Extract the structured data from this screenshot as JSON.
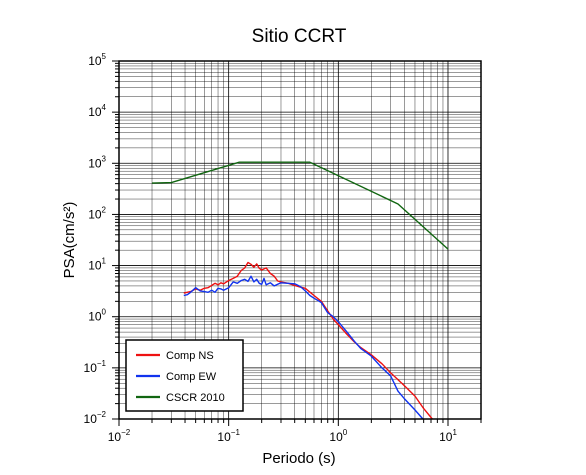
{
  "chart_data": {
    "type": "line",
    "title": "Sitio CCRT",
    "xlabel": "Periodo (s)",
    "ylabel": "PSA(cm/s²)",
    "xscale": "log",
    "yscale": "log",
    "xlim": [
      0.01,
      20
    ],
    "ylim": [
      0.01,
      100000
    ],
    "grid": true,
    "legend_position": "bottom-left",
    "x_ticks": [
      {
        "value": 0.01,
        "base": "10",
        "exp": "−2"
      },
      {
        "value": 0.1,
        "base": "10",
        "exp": "−1"
      },
      {
        "value": 1,
        "base": "10",
        "exp": "0"
      },
      {
        "value": 10,
        "base": "10",
        "exp": "1"
      }
    ],
    "y_ticks": [
      {
        "value": 0.01,
        "base": "10",
        "exp": "−2"
      },
      {
        "value": 0.1,
        "base": "10",
        "exp": "−1"
      },
      {
        "value": 1,
        "base": "10",
        "exp": "0"
      },
      {
        "value": 10,
        "base": "10",
        "exp": "1"
      },
      {
        "value": 100,
        "base": "10",
        "exp": "2"
      },
      {
        "value": 1000,
        "base": "10",
        "exp": "3"
      },
      {
        "value": 10000,
        "base": "10",
        "exp": "4"
      },
      {
        "value": 100000,
        "base": "10",
        "exp": "5"
      }
    ],
    "series": [
      {
        "name": "Comp NS",
        "color": "#ee1111",
        "points": [
          [
            0.039,
            2.9
          ],
          [
            0.045,
            3.1
          ],
          [
            0.05,
            3.5
          ],
          [
            0.055,
            3.3
          ],
          [
            0.06,
            3.6
          ],
          [
            0.065,
            3.7
          ],
          [
            0.07,
            4.1
          ],
          [
            0.075,
            4.5
          ],
          [
            0.08,
            4.2
          ],
          [
            0.085,
            4.6
          ],
          [
            0.09,
            4.4
          ],
          [
            0.1,
            5.1
          ],
          [
            0.11,
            5.6
          ],
          [
            0.12,
            6.2
          ],
          [
            0.13,
            8.0
          ],
          [
            0.14,
            9.0
          ],
          [
            0.15,
            11.5
          ],
          [
            0.16,
            10.6
          ],
          [
            0.17,
            9.3
          ],
          [
            0.18,
            10.8
          ],
          [
            0.19,
            8.9
          ],
          [
            0.2,
            8.2
          ],
          [
            0.22,
            9.0
          ],
          [
            0.24,
            7.0
          ],
          [
            0.26,
            6.2
          ],
          [
            0.28,
            5.0
          ],
          [
            0.3,
            4.8
          ],
          [
            0.35,
            4.5
          ],
          [
            0.4,
            4.1
          ],
          [
            0.45,
            3.8
          ],
          [
            0.5,
            3.6
          ],
          [
            0.6,
            2.6
          ],
          [
            0.7,
            2.0
          ],
          [
            0.8,
            1.3
          ],
          [
            0.9,
            0.9
          ],
          [
            1.0,
            0.7
          ],
          [
            1.2,
            0.45
          ],
          [
            1.4,
            0.32
          ],
          [
            1.6,
            0.25
          ],
          [
            2.0,
            0.18
          ],
          [
            2.5,
            0.12
          ],
          [
            3.0,
            0.08
          ],
          [
            4.0,
            0.045
          ],
          [
            5.0,
            0.028
          ],
          [
            6.0,
            0.016
          ],
          [
            7.2,
            0.01
          ]
        ]
      },
      {
        "name": "Comp EW",
        "color": "#1133ee",
        "points": [
          [
            0.039,
            2.6
          ],
          [
            0.042,
            2.7
          ],
          [
            0.045,
            3.0
          ],
          [
            0.05,
            3.7
          ],
          [
            0.055,
            3.2
          ],
          [
            0.06,
            3.1
          ],
          [
            0.065,
            3.0
          ],
          [
            0.07,
            3.3
          ],
          [
            0.075,
            3.0
          ],
          [
            0.08,
            3.6
          ],
          [
            0.085,
            3.5
          ],
          [
            0.09,
            3.3
          ],
          [
            0.1,
            3.7
          ],
          [
            0.11,
            4.8
          ],
          [
            0.12,
            4.5
          ],
          [
            0.13,
            5.1
          ],
          [
            0.14,
            5.4
          ],
          [
            0.15,
            4.9
          ],
          [
            0.16,
            6.2
          ],
          [
            0.17,
            4.8
          ],
          [
            0.18,
            5.4
          ],
          [
            0.19,
            4.5
          ],
          [
            0.2,
            4.3
          ],
          [
            0.21,
            5.6
          ],
          [
            0.22,
            4.2
          ],
          [
            0.24,
            4.6
          ],
          [
            0.26,
            4.0
          ],
          [
            0.28,
            4.3
          ],
          [
            0.3,
            4.6
          ],
          [
            0.35,
            4.5
          ],
          [
            0.4,
            4.4
          ],
          [
            0.45,
            3.9
          ],
          [
            0.5,
            3.2
          ],
          [
            0.55,
            2.6
          ],
          [
            0.6,
            2.3
          ],
          [
            0.7,
            1.9
          ],
          [
            0.8,
            1.2
          ],
          [
            0.9,
            1.0
          ],
          [
            1.0,
            0.8
          ],
          [
            1.2,
            0.5
          ],
          [
            1.4,
            0.33
          ],
          [
            1.6,
            0.24
          ],
          [
            2.0,
            0.17
          ],
          [
            2.5,
            0.1
          ],
          [
            3.0,
            0.07
          ],
          [
            3.5,
            0.035
          ],
          [
            4.0,
            0.025
          ],
          [
            5.0,
            0.015
          ],
          [
            5.9,
            0.01
          ]
        ]
      },
      {
        "name": "CSCR 2010",
        "color": "#116611",
        "points": [
          [
            0.02,
            410
          ],
          [
            0.03,
            420
          ],
          [
            0.125,
            1050
          ],
          [
            0.55,
            1050
          ],
          [
            3.5,
            160
          ],
          [
            10.0,
            21
          ]
        ]
      }
    ]
  }
}
